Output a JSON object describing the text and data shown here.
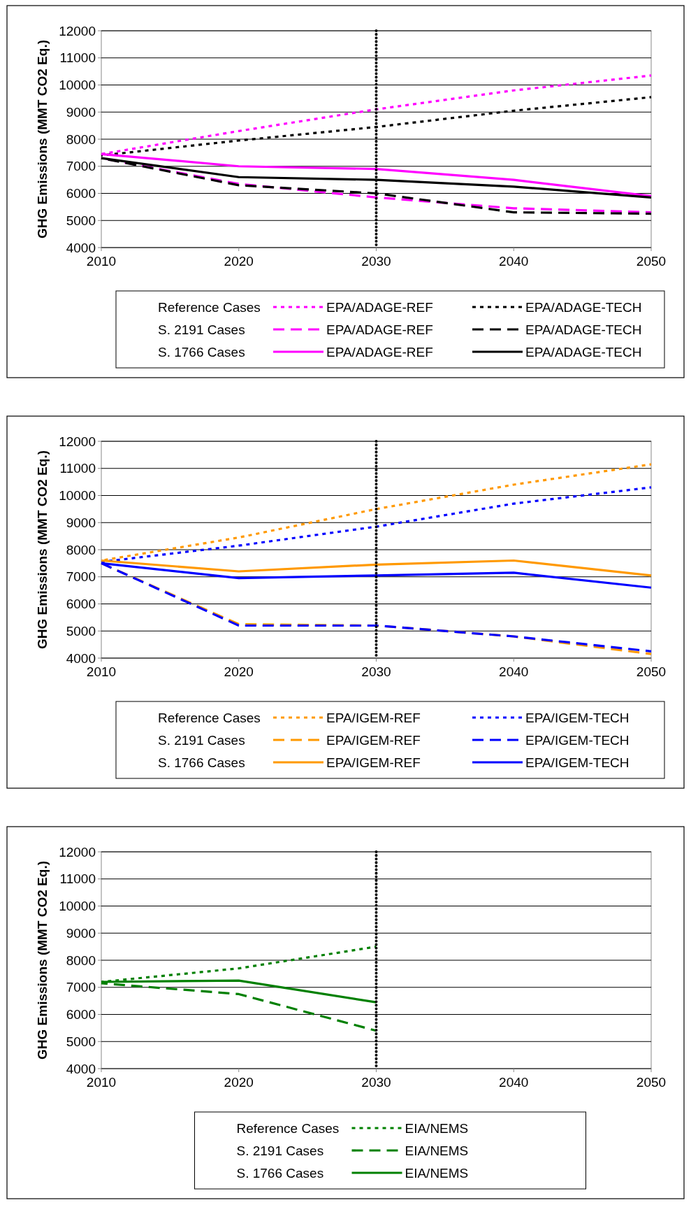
{
  "chart_data": [
    {
      "type": "line",
      "ylabel": "GHG Emissions (MMT CO2 Eq.)",
      "x": [
        2010,
        2020,
        2030,
        2040,
        2050
      ],
      "xlim": [
        2010,
        2050
      ],
      "xticks": [
        2010,
        2020,
        2030,
        2040,
        2050
      ],
      "ylim": [
        4000,
        12000
      ],
      "yticks": [
        4000,
        5000,
        6000,
        7000,
        8000,
        9000,
        10000,
        11000,
        12000
      ],
      "grid": "y",
      "legend": "bottom",
      "annotations": [
        "Reference Cases",
        "S. 2191 Cases",
        "S. 1766 Cases"
      ],
      "ref_lines": [
        {
          "axis": "x",
          "value": 2030,
          "color": "#000000",
          "line_style": "dotted"
        }
      ],
      "series": [
        {
          "name": "EPA/ADAGE-REF",
          "color": "#ff00ff",
          "line_style": "dotted",
          "values": [
            7450,
            8300,
            9100,
            9800,
            10350
          ]
        },
        {
          "name": "EPA/ADAGE-TECH",
          "color": "#000000",
          "line_style": "dotted",
          "values": [
            7400,
            7950,
            8450,
            9050,
            9550
          ]
        },
        {
          "name": "EPA/ADAGE-REF",
          "color": "#ff00ff",
          "line_style": "dashed",
          "values": [
            7300,
            6350,
            5850,
            5450,
            5300
          ]
        },
        {
          "name": "EPA/ADAGE-TECH",
          "color": "#000000",
          "line_style": "dashed",
          "values": [
            7300,
            6300,
            6000,
            5300,
            5250
          ]
        },
        {
          "name": "EPA/ADAGE-REF",
          "color": "#ff00ff",
          "line_style": "solid",
          "values": [
            7450,
            7000,
            6900,
            6500,
            5900
          ]
        },
        {
          "name": "EPA/ADAGE-TECH",
          "color": "#000000",
          "line_style": "solid",
          "values": [
            7300,
            6600,
            6500,
            6250,
            5850
          ]
        }
      ]
    },
    {
      "type": "line",
      "ylabel": "GHG Emissions (MMT CO2 Eq.)",
      "x": [
        2010,
        2020,
        2030,
        2040,
        2050
      ],
      "xlim": [
        2010,
        2050
      ],
      "xticks": [
        2010,
        2020,
        2030,
        2040,
        2050
      ],
      "ylim": [
        4000,
        12000
      ],
      "yticks": [
        4000,
        5000,
        6000,
        7000,
        8000,
        9000,
        10000,
        11000,
        12000
      ],
      "grid": "y",
      "legend": "bottom",
      "annotations": [
        "Reference Cases",
        "S. 2191 Cases",
        "S. 1766 Cases"
      ],
      "ref_lines": [
        {
          "axis": "x",
          "value": 2030,
          "color": "#000000",
          "line_style": "dotted"
        }
      ],
      "series": [
        {
          "name": "EPA/IGEM-REF",
          "color": "#ff9900",
          "line_style": "dotted",
          "values": [
            7600,
            8450,
            9500,
            10400,
            11150
          ]
        },
        {
          "name": "EPA/IGEM-TECH",
          "color": "#0000ff",
          "line_style": "dotted",
          "values": [
            7550,
            8150,
            8850,
            9700,
            10300
          ]
        },
        {
          "name": "EPA/IGEM-REF",
          "color": "#ff9900",
          "line_style": "dashed",
          "values": [
            7500,
            5250,
            5200,
            4800,
            4150
          ]
        },
        {
          "name": "EPA/IGEM-TECH",
          "color": "#0000ff",
          "line_style": "dashed",
          "values": [
            7500,
            5200,
            5200,
            4800,
            4250
          ]
        },
        {
          "name": "EPA/IGEM-REF",
          "color": "#ff9900",
          "line_style": "solid",
          "values": [
            7600,
            7200,
            7450,
            7600,
            7050
          ]
        },
        {
          "name": "EPA/IGEM-TECH",
          "color": "#0000ff",
          "line_style": "solid",
          "values": [
            7500,
            6950,
            7050,
            7150,
            6600
          ]
        }
      ]
    },
    {
      "type": "line",
      "ylabel": "GHG Emissions (MMT CO2 Eq.)",
      "x": [
        2010,
        2020,
        2030
      ],
      "xlim": [
        2010,
        2050
      ],
      "xticks": [
        2010,
        2020,
        2030,
        2040,
        2050
      ],
      "ylim": [
        4000,
        12000
      ],
      "yticks": [
        4000,
        5000,
        6000,
        7000,
        8000,
        9000,
        10000,
        11000,
        12000
      ],
      "grid": "y",
      "legend": "bottom",
      "annotations": [
        "Reference Cases",
        "S. 2191 Cases",
        "S. 1766 Cases"
      ],
      "ref_lines": [
        {
          "axis": "x",
          "value": 2030,
          "color": "#000000",
          "line_style": "dotted"
        }
      ],
      "series": [
        {
          "name": "EIA/NEMS",
          "color": "#008000",
          "line_style": "dotted",
          "values": [
            7200,
            7700,
            8500
          ]
        },
        {
          "name": "EIA/NEMS",
          "color": "#008000",
          "line_style": "dashed",
          "values": [
            7150,
            6750,
            5400
          ]
        },
        {
          "name": "EIA/NEMS",
          "color": "#008000",
          "line_style": "solid",
          "values": [
            7200,
            7250,
            6450
          ]
        }
      ]
    }
  ]
}
